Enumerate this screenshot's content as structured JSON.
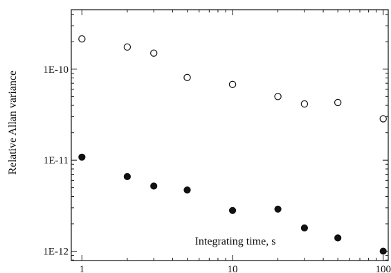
{
  "chart_data": {
    "type": "scatter",
    "title": "",
    "xlabel": "Integrating time, s",
    "ylabel": "Relative Allan variance",
    "xscale": "log",
    "yscale": "log",
    "xlim": [
      0.85,
      108
    ],
    "ylim": [
      7.9e-13,
      4.5e-10
    ],
    "xticks": [
      1,
      10,
      100
    ],
    "xtick_labels": [
      "1",
      "10",
      "100"
    ],
    "yticks": [
      1e-12,
      1e-11,
      1e-10
    ],
    "ytick_labels": [
      "1E-12",
      "1E-11",
      "1E-10"
    ],
    "grid": false,
    "legend": "none",
    "series": [
      {
        "marker": "open-circle",
        "x": [
          1,
          2,
          3,
          5,
          10,
          20,
          30,
          50,
          100
        ],
        "y": [
          2.15e-10,
          1.75e-10,
          1.5e-10,
          8.1e-11,
          6.8e-11,
          5e-11,
          4.15e-11,
          4.3e-11,
          2.85e-11
        ]
      },
      {
        "marker": "filled-circle",
        "x": [
          1,
          2,
          3,
          5,
          10,
          20,
          30,
          50,
          100
        ],
        "y": [
          1.08e-11,
          6.6e-12,
          5.2e-12,
          4.7e-12,
          2.8e-12,
          2.9e-12,
          1.8e-12,
          1.4e-12,
          1e-12
        ]
      }
    ]
  }
}
